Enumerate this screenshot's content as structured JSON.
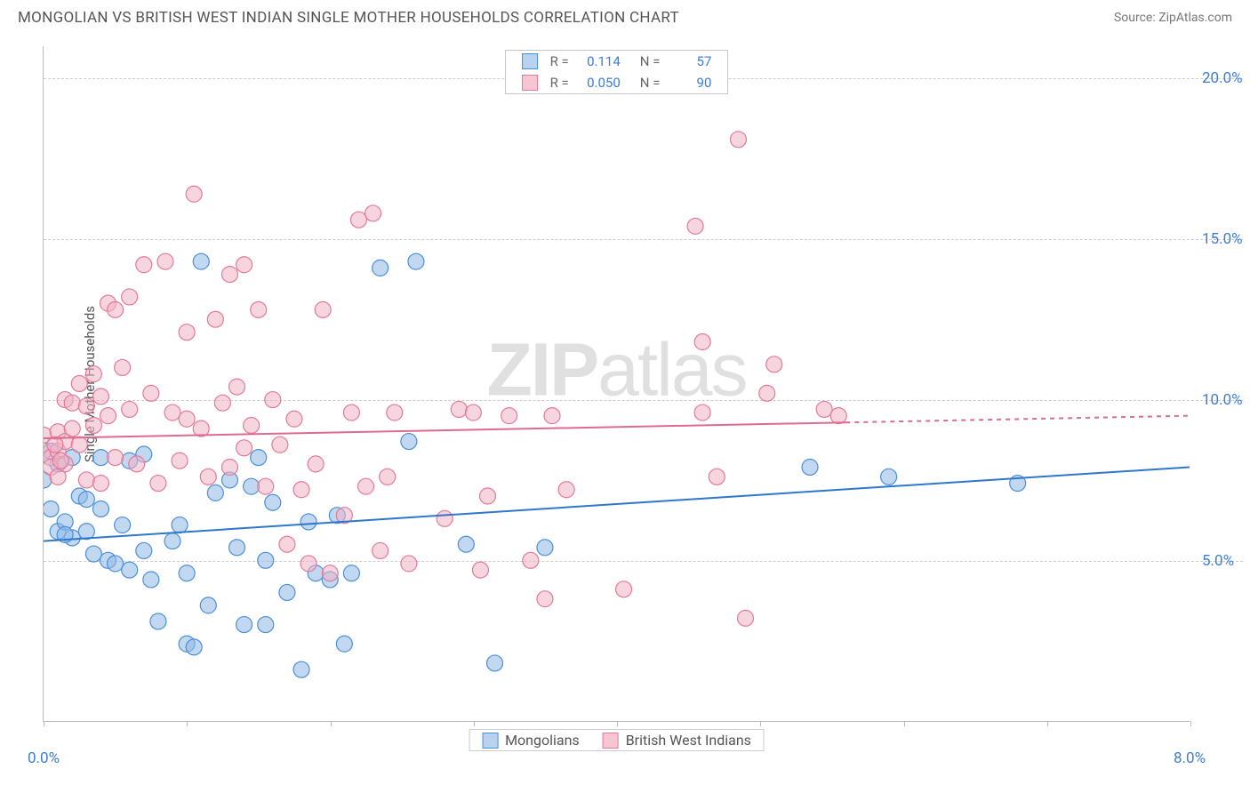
{
  "title": "MONGOLIAN VS BRITISH WEST INDIAN SINGLE MOTHER HOUSEHOLDS CORRELATION CHART",
  "source": "Source: ZipAtlas.com",
  "watermark_zip": "ZIP",
  "watermark_atlas": "atlas",
  "y_axis_label": "Single Mother Households",
  "chart": {
    "type": "scatter",
    "background_color": "#ffffff",
    "grid_color": "#cccccc",
    "axis_color": "#bbbbbb",
    "xlim": [
      0,
      8
    ],
    "ylim": [
      0,
      21
    ],
    "x_ticks": [
      0,
      1,
      2,
      3,
      4,
      5,
      6,
      7,
      8
    ],
    "x_tick_labels_shown": {
      "0": "0.0%",
      "8": "8.0%"
    },
    "y_ticks": [
      5,
      10,
      15,
      20
    ],
    "y_tick_labels": [
      "5.0%",
      "10.0%",
      "15.0%",
      "20.0%"
    ],
    "x_label_color": "#3b7dd8",
    "y_label_color": "#3b7dd8",
    "marker_radius": 9,
    "marker_opacity": 0.55,
    "line_width": 2
  },
  "stats_legend": {
    "rows": [
      {
        "swatch_fill": "#b9d2f0",
        "swatch_border": "#4a90d9",
        "r_label": "R =",
        "r_value": "0.114",
        "n_label": "N =",
        "n_value": "57"
      },
      {
        "swatch_fill": "#f6c7d3",
        "swatch_border": "#e37a9a",
        "r_label": "R =",
        "r_value": "0.050",
        "n_label": "N =",
        "n_value": "90"
      }
    ]
  },
  "bottom_legend": {
    "items": [
      {
        "swatch_fill": "#b9d2f0",
        "swatch_border": "#4a90d9",
        "label": "Mongolians"
      },
      {
        "swatch_fill": "#f6c7d3",
        "swatch_border": "#e37a9a",
        "label": "British West Indians"
      }
    ]
  },
  "series": [
    {
      "name": "Mongolians",
      "color_fill": "#8fb8e6",
      "color_stroke": "#4a90d9",
      "trend": {
        "x1": 0,
        "y1": 5.6,
        "x2": 8,
        "y2": 7.9,
        "solid_until_x": 8,
        "color": "#2e77cc"
      },
      "points": [
        [
          0.0,
          7.5
        ],
        [
          0.05,
          8.4
        ],
        [
          0.05,
          6.6
        ],
        [
          0.1,
          5.9
        ],
        [
          0.1,
          8.0
        ],
        [
          0.15,
          6.2
        ],
        [
          0.2,
          5.7
        ],
        [
          0.2,
          8.2
        ],
        [
          0.25,
          7.0
        ],
        [
          0.3,
          5.9
        ],
        [
          0.3,
          6.9
        ],
        [
          0.35,
          5.2
        ],
        [
          0.4,
          6.6
        ],
        [
          0.4,
          8.2
        ],
        [
          0.45,
          5.0
        ],
        [
          0.5,
          4.9
        ],
        [
          0.55,
          6.1
        ],
        [
          0.6,
          4.7
        ],
        [
          0.6,
          8.1
        ],
        [
          0.7,
          5.3
        ],
        [
          0.7,
          8.3
        ],
        [
          0.75,
          4.4
        ],
        [
          0.8,
          3.1
        ],
        [
          0.9,
          5.6
        ],
        [
          0.95,
          6.1
        ],
        [
          1.0,
          4.6
        ],
        [
          1.0,
          2.4
        ],
        [
          1.05,
          2.3
        ],
        [
          1.1,
          14.3
        ],
        [
          1.15,
          3.6
        ],
        [
          1.2,
          7.1
        ],
        [
          1.3,
          7.5
        ],
        [
          1.35,
          5.4
        ],
        [
          1.4,
          3.0
        ],
        [
          1.45,
          7.3
        ],
        [
          1.5,
          8.2
        ],
        [
          1.55,
          5.0
        ],
        [
          1.55,
          3.0
        ],
        [
          1.6,
          6.8
        ],
        [
          1.7,
          4.0
        ],
        [
          1.8,
          1.6
        ],
        [
          1.85,
          6.2
        ],
        [
          1.9,
          4.6
        ],
        [
          2.0,
          4.4
        ],
        [
          2.05,
          6.4
        ],
        [
          2.1,
          2.4
        ],
        [
          2.15,
          4.6
        ],
        [
          2.35,
          14.1
        ],
        [
          2.55,
          8.7
        ],
        [
          2.6,
          14.3
        ],
        [
          2.95,
          5.5
        ],
        [
          3.15,
          1.8
        ],
        [
          3.5,
          5.4
        ],
        [
          5.35,
          7.9
        ],
        [
          5.9,
          7.6
        ],
        [
          6.8,
          7.4
        ],
        [
          0.15,
          5.8
        ]
      ]
    },
    {
      "name": "British West Indians",
      "color_fill": "#f0b3c4",
      "color_stroke": "#e37a9a",
      "trend": {
        "x1": 0,
        "y1": 8.8,
        "x2": 8,
        "y2": 9.5,
        "solid_until_x": 5.6,
        "color": "#dd6b8f"
      },
      "points": [
        [
          0.0,
          8.9
        ],
        [
          0.0,
          8.4
        ],
        [
          0.05,
          8.2
        ],
        [
          0.05,
          7.9
        ],
        [
          0.1,
          9.0
        ],
        [
          0.1,
          8.4
        ],
        [
          0.1,
          7.6
        ],
        [
          0.15,
          10.0
        ],
        [
          0.15,
          8.7
        ],
        [
          0.15,
          8.0
        ],
        [
          0.2,
          9.9
        ],
        [
          0.2,
          9.1
        ],
        [
          0.25,
          10.5
        ],
        [
          0.25,
          8.6
        ],
        [
          0.3,
          9.8
        ],
        [
          0.3,
          7.5
        ],
        [
          0.35,
          10.8
        ],
        [
          0.35,
          9.2
        ],
        [
          0.4,
          10.1
        ],
        [
          0.4,
          7.4
        ],
        [
          0.45,
          13.0
        ],
        [
          0.45,
          9.5
        ],
        [
          0.5,
          12.8
        ],
        [
          0.5,
          8.2
        ],
        [
          0.55,
          11.0
        ],
        [
          0.6,
          13.2
        ],
        [
          0.6,
          9.7
        ],
        [
          0.65,
          8.0
        ],
        [
          0.7,
          14.2
        ],
        [
          0.75,
          10.2
        ],
        [
          0.8,
          7.4
        ],
        [
          0.85,
          14.3
        ],
        [
          0.9,
          9.6
        ],
        [
          0.95,
          8.1
        ],
        [
          1.0,
          12.1
        ],
        [
          1.0,
          9.4
        ],
        [
          1.05,
          16.4
        ],
        [
          1.1,
          9.1
        ],
        [
          1.15,
          7.6
        ],
        [
          1.2,
          12.5
        ],
        [
          1.25,
          9.9
        ],
        [
          1.3,
          13.9
        ],
        [
          1.3,
          7.9
        ],
        [
          1.35,
          10.4
        ],
        [
          1.4,
          14.2
        ],
        [
          1.4,
          8.5
        ],
        [
          1.45,
          9.2
        ],
        [
          1.5,
          12.8
        ],
        [
          1.55,
          7.3
        ],
        [
          1.6,
          10.0
        ],
        [
          1.65,
          8.6
        ],
        [
          1.7,
          5.5
        ],
        [
          1.75,
          9.4
        ],
        [
          1.8,
          7.2
        ],
        [
          1.85,
          4.9
        ],
        [
          1.9,
          8.0
        ],
        [
          1.95,
          12.8
        ],
        [
          2.0,
          4.6
        ],
        [
          2.1,
          6.4
        ],
        [
          2.15,
          9.6
        ],
        [
          2.2,
          15.6
        ],
        [
          2.25,
          7.3
        ],
        [
          2.3,
          15.8
        ],
        [
          2.35,
          5.3
        ],
        [
          2.4,
          7.6
        ],
        [
          2.45,
          9.6
        ],
        [
          2.55,
          4.9
        ],
        [
          2.8,
          6.3
        ],
        [
          2.9,
          9.7
        ],
        [
          3.0,
          9.6
        ],
        [
          3.05,
          4.7
        ],
        [
          3.1,
          7.0
        ],
        [
          3.25,
          9.5
        ],
        [
          3.4,
          5.0
        ],
        [
          3.5,
          3.8
        ],
        [
          3.55,
          9.5
        ],
        [
          3.65,
          7.2
        ],
        [
          4.05,
          4.1
        ],
        [
          4.55,
          15.4
        ],
        [
          4.6,
          11.8
        ],
        [
          4.6,
          9.6
        ],
        [
          4.7,
          7.6
        ],
        [
          4.85,
          18.1
        ],
        [
          4.9,
          3.2
        ],
        [
          5.05,
          10.2
        ],
        [
          5.1,
          11.1
        ],
        [
          5.45,
          9.7
        ],
        [
          5.55,
          9.5
        ],
        [
          0.08,
          8.6
        ],
        [
          0.12,
          8.1
        ]
      ]
    }
  ]
}
